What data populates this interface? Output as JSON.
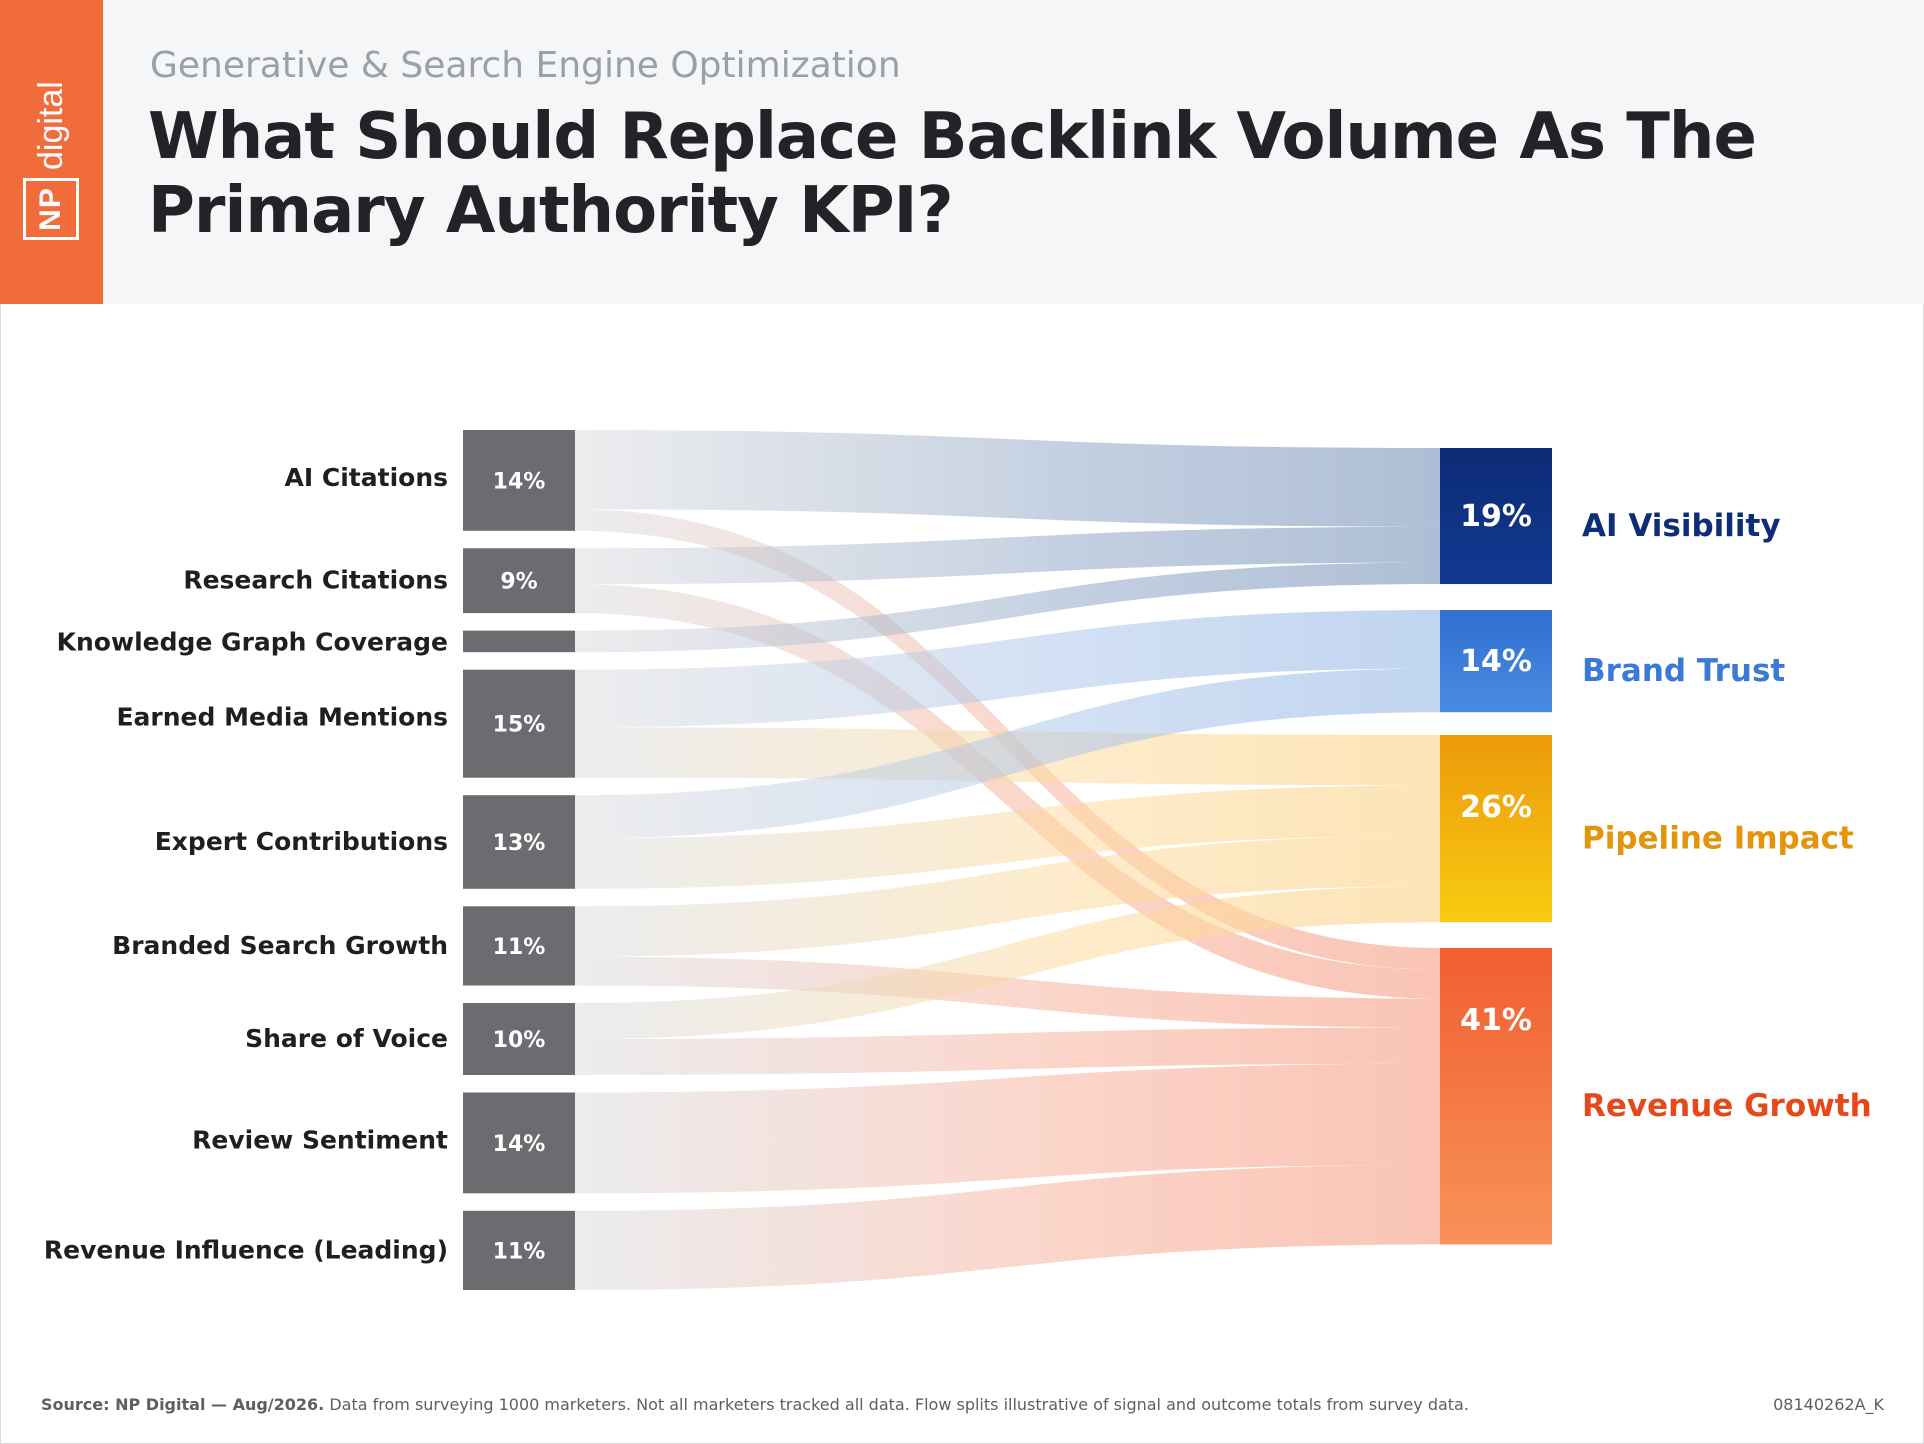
{
  "header": {
    "subtitle": "Generative & Search Engine Optimization",
    "title": "What Should Replace Backlink Volume As The Primary Authority KPI?",
    "logo_np": "NP",
    "logo_word": "digital"
  },
  "colors": {
    "brand_orange": "#f26b3a",
    "ai_visibility": "#0e2d78",
    "brand_trust": "#3b79d6",
    "pipeline_impact": "#f0a00c",
    "revenue_growth": "#f4622c",
    "source_node": "#6b6b70"
  },
  "chart_data": {
    "type": "sankey",
    "sources": [
      {
        "name": "AI Citations",
        "label": "14%",
        "value": 14
      },
      {
        "name": "Research Citations",
        "label": "9%",
        "value": 9
      },
      {
        "name": "Knowledge Graph Coverage",
        "label": "",
        "value": 3
      },
      {
        "name": "Earned Media Mentions",
        "label": "15%",
        "value": 15
      },
      {
        "name": "Expert Contributions",
        "label": "13%",
        "value": 13
      },
      {
        "name": "Branded Search Growth",
        "label": "11%",
        "value": 11
      },
      {
        "name": "Share of Voice",
        "label": "10%",
        "value": 10
      },
      {
        "name": "Review Sentiment",
        "label": "14%",
        "value": 14
      },
      {
        "name": "Revenue Influence (Leading)",
        "label": "11%",
        "value": 11
      }
    ],
    "targets": [
      {
        "name": "AI Visibility",
        "label": "19%",
        "value": 19
      },
      {
        "name": "Brand Trust",
        "label": "14%",
        "value": 14
      },
      {
        "name": "Pipeline Impact",
        "label": "26%",
        "value": 26
      },
      {
        "name": "Revenue Growth",
        "label": "41%",
        "value": 41
      }
    ],
    "flows": [
      {
        "source": "AI Citations",
        "target": "AI Visibility",
        "value": 11
      },
      {
        "source": "AI Citations",
        "target": "Revenue Growth",
        "value": 3
      },
      {
        "source": "Research Citations",
        "target": "AI Visibility",
        "value": 5
      },
      {
        "source": "Research Citations",
        "target": "Revenue Growth",
        "value": 4
      },
      {
        "source": "Knowledge Graph Coverage",
        "target": "AI Visibility",
        "value": 3
      },
      {
        "source": "Earned Media Mentions",
        "target": "Brand Trust",
        "value": 8
      },
      {
        "source": "Earned Media Mentions",
        "target": "Pipeline Impact",
        "value": 7
      },
      {
        "source": "Expert Contributions",
        "target": "Brand Trust",
        "value": 6
      },
      {
        "source": "Expert Contributions",
        "target": "Pipeline Impact",
        "value": 7
      },
      {
        "source": "Branded Search Growth",
        "target": "Pipeline Impact",
        "value": 7
      },
      {
        "source": "Branded Search Growth",
        "target": "Revenue Growth",
        "value": 4
      },
      {
        "source": "Share of Voice",
        "target": "Pipeline Impact",
        "value": 5
      },
      {
        "source": "Share of Voice",
        "target": "Revenue Growth",
        "value": 5
      },
      {
        "source": "Review Sentiment",
        "target": "Revenue Growth",
        "value": 14
      },
      {
        "source": "Revenue Influence (Leading)",
        "target": "Revenue Growth",
        "value": 11
      }
    ]
  },
  "footer": {
    "source_bold": "Source: NP Digital — Aug/2026.",
    "source_text": " Data from surveying 1000 marketers. Not all marketers tracked all data. Flow splits illustrative of signal and outcome totals from survey data.",
    "code": "08140262A_K"
  }
}
